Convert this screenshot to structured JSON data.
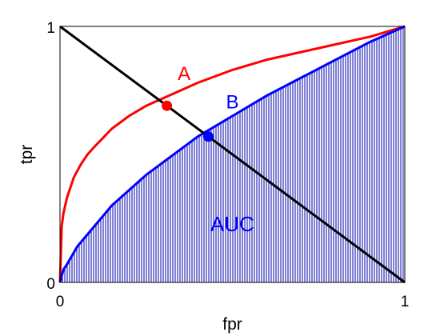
{
  "chart_data": {
    "type": "line",
    "xlabel": "fpr",
    "ylabel": "tpr",
    "xlim": [
      0,
      1
    ],
    "ylim": [
      0,
      1
    ],
    "x_ticks": [
      "0",
      "1"
    ],
    "y_ticks": [
      "0",
      "1"
    ],
    "grid": false,
    "series": [
      {
        "name": "A",
        "color": "#ff0000",
        "x": [
          0,
          0.005,
          0.01,
          0.02,
          0.04,
          0.06,
          0.08,
          0.1,
          0.15,
          0.2,
          0.25,
          0.3,
          0.35,
          0.4,
          0.5,
          0.6,
          0.7,
          0.8,
          0.9,
          0.95,
          1
        ],
        "y": [
          0,
          0.22,
          0.27,
          0.33,
          0.41,
          0.46,
          0.5,
          0.53,
          0.6,
          0.65,
          0.69,
          0.72,
          0.75,
          0.78,
          0.83,
          0.87,
          0.9,
          0.93,
          0.96,
          0.98,
          1
        ]
      },
      {
        "name": "B",
        "color": "#0000ff",
        "x": [
          0,
          0.01,
          0.02,
          0.05,
          0.1,
          0.15,
          0.2,
          0.25,
          0.3,
          0.35,
          0.4,
          0.45,
          0.5,
          0.6,
          0.7,
          0.8,
          0.9,
          1
        ],
        "y": [
          0,
          0.05,
          0.07,
          0.14,
          0.22,
          0.3,
          0.36,
          0.42,
          0.47,
          0.52,
          0.57,
          0.61,
          0.65,
          0.73,
          0.8,
          0.87,
          0.94,
          1
        ]
      },
      {
        "name": "",
        "color": "#000000",
        "x": [
          0,
          1
        ],
        "y": [
          1,
          0
        ]
      }
    ],
    "points": [
      {
        "series": "A",
        "x": 0.31,
        "y": 0.69,
        "color": "#ff0000"
      },
      {
        "series": "B",
        "x": 0.43,
        "y": 0.57,
        "color": "#0000ff"
      }
    ],
    "shaded_area": {
      "series": "B",
      "label": "AUC",
      "color": "#0000aa"
    },
    "annotations": [
      {
        "text": "A",
        "x": 0.36,
        "y": 0.79,
        "color": "#ff0000"
      },
      {
        "text": "B",
        "x": 0.5,
        "y": 0.68,
        "color": "#0000ff"
      },
      {
        "text": "AUC",
        "x": 0.5,
        "y": 0.2,
        "color": "#0000ff"
      }
    ]
  }
}
